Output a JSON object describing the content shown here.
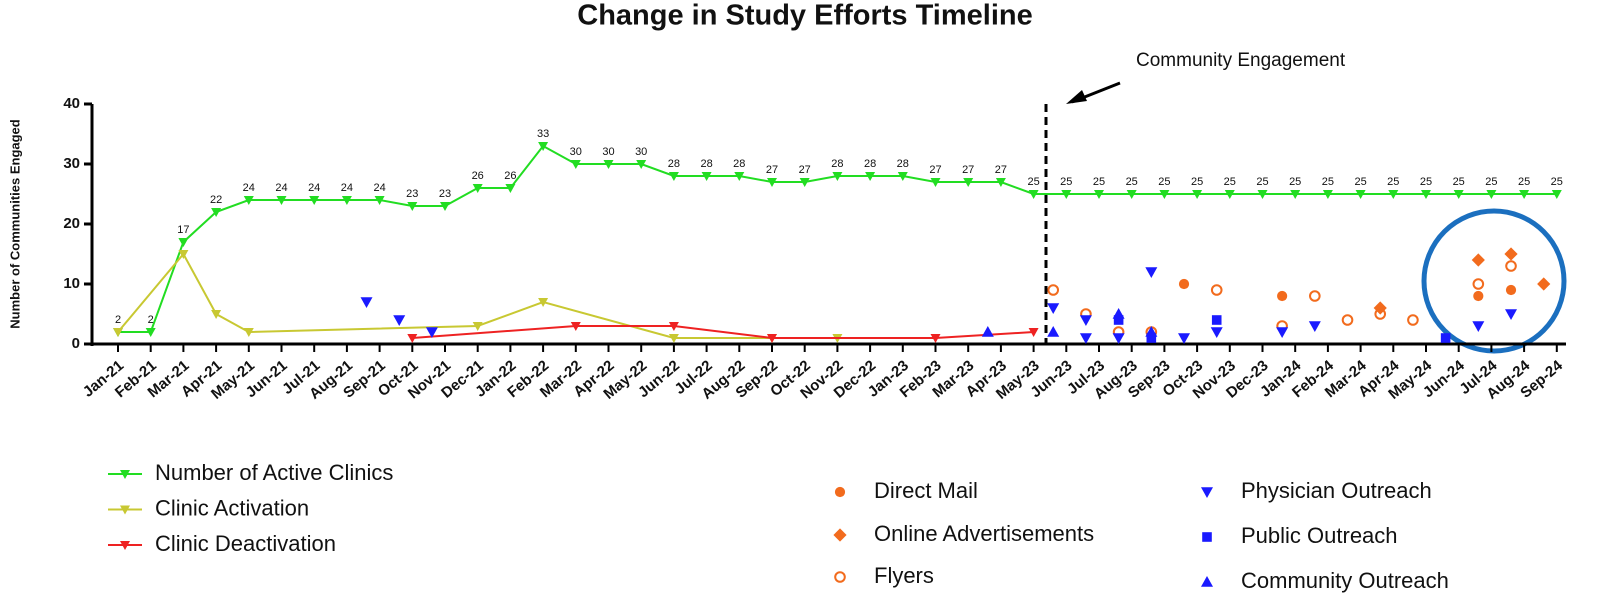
{
  "chart_data": {
    "type": "line",
    "title": "Change in Study Efforts Timeline",
    "ylabel": "Number of Communities Engaged",
    "annotation": "Community Engagement",
    "categories": [
      "Jan-21",
      "Feb-21",
      "Mar-21",
      "Apr-21",
      "May-21",
      "Jun-21",
      "Jul-21",
      "Aug-21",
      "Sep-21",
      "Oct-21",
      "Nov-21",
      "Dec-21",
      "Jan-22",
      "Feb-22",
      "Mar-22",
      "Apr-22",
      "May-22",
      "Jun-22",
      "Jul-22",
      "Aug-22",
      "Sep-22",
      "Oct-22",
      "Nov-22",
      "Dec-22",
      "Jan-23",
      "Feb-23",
      "Mar-23",
      "Apr-23",
      "May-23",
      "Jun-23",
      "Jul-23",
      "Aug-23",
      "Sep-23",
      "Oct-23",
      "Nov-23",
      "Dec-23",
      "Jan-24",
      "Feb-24",
      "Mar-24",
      "Apr-24",
      "May-24",
      "Jun-24",
      "Jul-24",
      "Aug-24",
      "Sep-24"
    ],
    "ylim": [
      0,
      40
    ],
    "yticks": [
      0,
      10,
      20,
      30,
      40
    ],
    "series": [
      {
        "name": "Number of Active Clinics",
        "kind": "line",
        "color": "#22dd22",
        "marker": "down",
        "values": [
          2,
          2,
          17,
          22,
          24,
          24,
          24,
          24,
          24,
          23,
          23,
          26,
          26,
          33,
          30,
          30,
          30,
          28,
          28,
          28,
          27,
          27,
          28,
          28,
          28,
          27,
          27,
          27,
          25,
          25,
          25,
          25,
          25,
          25,
          25,
          25,
          25,
          25,
          25,
          25,
          25,
          25,
          25,
          25,
          25
        ]
      },
      {
        "name": "Clinic Activation",
        "kind": "line",
        "color": "#c8c832",
        "marker": "down",
        "x": [
          "Jan-21",
          "Mar-21",
          "Apr-21",
          "May-21",
          "Dec-21",
          "Feb-22",
          "Jun-22",
          "Sep-22",
          "Nov-22"
        ],
        "values": [
          2,
          15,
          5,
          2,
          3,
          7,
          1,
          1,
          1
        ]
      },
      {
        "name": "Clinic Deactivation",
        "kind": "line",
        "color": "#ee2222",
        "marker": "down",
        "x": [
          "Oct-21",
          "Mar-22",
          "Jun-22",
          "Sep-22",
          "Feb-23",
          "May-23"
        ],
        "values": [
          1,
          3,
          3,
          1,
          1,
          2
        ]
      },
      {
        "name": "Direct Mail",
        "kind": "scatter",
        "color": "#f26b1d",
        "marker": "dot",
        "x": [
          "Sep-23",
          "Dec-23",
          "Jun-24",
          "Jul-24"
        ],
        "values": [
          10,
          8,
          8,
          9
        ]
      },
      {
        "name": "Online Advertisements",
        "kind": "scatter",
        "color": "#f26b1d",
        "marker": "diamond",
        "x": [
          "Mar-24",
          "Jun-24",
          "Jul-24",
          "Aug-24"
        ],
        "values": [
          6,
          14,
          15,
          10
        ]
      },
      {
        "name": "Flyers",
        "kind": "scatter",
        "color": "#f26b1d",
        "marker": "ring",
        "x": [
          "May-23",
          "Jun-23",
          "Jul-23",
          "Aug-23",
          "Oct-23",
          "Dec-23",
          "Jan-24",
          "Feb-24",
          "Mar-24",
          "Apr-24",
          "Jun-24",
          "Jul-24"
        ],
        "values": [
          9,
          5,
          2,
          2,
          9,
          3,
          8,
          4,
          5,
          4,
          10,
          13
        ]
      },
      {
        "name": "Physician Outreach",
        "kind": "scatter",
        "color": "#1a1aff",
        "marker": "down",
        "x": [
          "Aug-21",
          "Sep-21",
          "Oct-21",
          "May-23",
          "Jun-23",
          "Jun-23",
          "Jul-23",
          "Aug-23",
          "Sep-23",
          "Oct-23",
          "Dec-23",
          "Jan-24",
          "Jun-24",
          "Jul-24"
        ],
        "values": [
          7,
          4,
          2,
          6,
          1,
          4,
          1,
          12,
          1,
          2,
          2,
          3,
          3,
          5
        ]
      },
      {
        "name": "Public Outreach",
        "kind": "scatter",
        "color": "#1a1aff",
        "marker": "square",
        "x": [
          "Jul-23",
          "Aug-23",
          "Oct-23",
          "May-24"
        ],
        "values": [
          4,
          1,
          4,
          1
        ]
      },
      {
        "name": "Community Outreach",
        "kind": "scatter",
        "color": "#1a1aff",
        "marker": "up",
        "x": [
          "Mar-23",
          "May-23",
          "Jul-23",
          "Aug-23"
        ],
        "values": [
          2,
          2,
          5,
          2
        ]
      }
    ]
  }
}
